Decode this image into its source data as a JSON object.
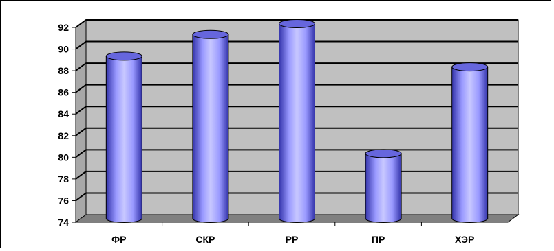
{
  "chart_data": {
    "type": "bar",
    "style": "3d-cylinder",
    "categories": [
      "ФР",
      "СКР",
      "РР",
      "ПР",
      "ХЭР"
    ],
    "values": [
      89,
      91,
      92,
      80,
      88
    ],
    "ylim": [
      74,
      92
    ],
    "yticks": [
      74,
      76,
      78,
      80,
      82,
      84,
      86,
      88,
      90,
      92
    ],
    "title": "",
    "xlabel": "",
    "ylabel": "",
    "grid": true,
    "legend": "none",
    "colors": {
      "bar": "#9999ff",
      "bar_dark": "#3333aa",
      "bar_light": "#c8c8ff",
      "wall": "#c0c0c0",
      "floor": "#808080",
      "gridline": "#000000"
    }
  }
}
